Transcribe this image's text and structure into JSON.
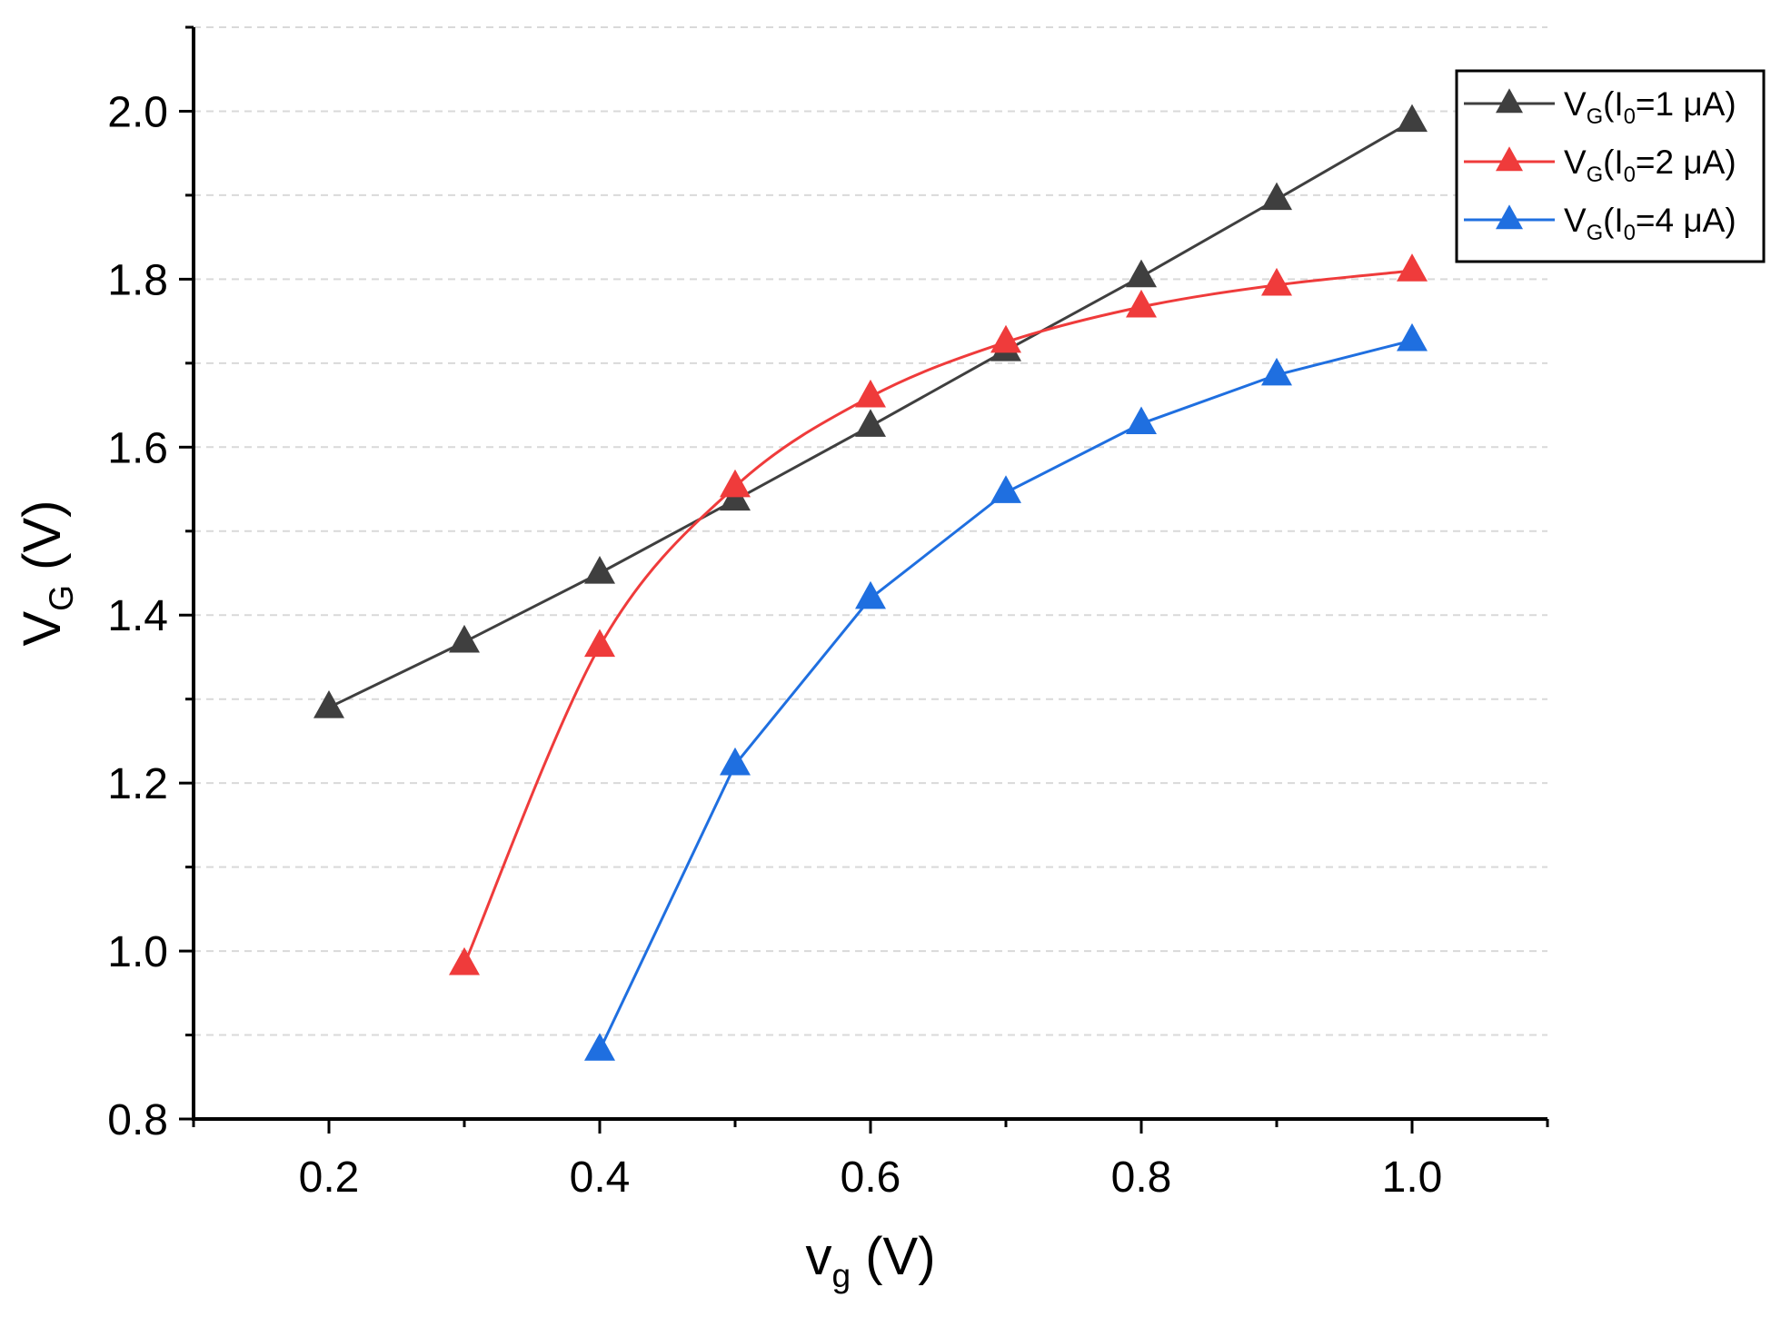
{
  "chart_data": {
    "type": "line",
    "title": "",
    "xlabel": {
      "base": "v",
      "sub": "g",
      "unit": " (V)"
    },
    "ylabel": {
      "base": "V",
      "sub": "G",
      "unit": " (V)"
    },
    "xlim": [
      0.1,
      1.1
    ],
    "ylim": [
      0.8,
      2.1
    ],
    "xticks": [
      0.2,
      0.4,
      0.6,
      0.8,
      1.0
    ],
    "xtick_labels": [
      "0.2",
      "0.4",
      "0.6",
      "0.8",
      "1.0"
    ],
    "yticks": [
      0.8,
      1.0,
      1.2,
      1.4,
      1.6,
      1.8,
      2.0
    ],
    "ytick_labels": [
      "0.8",
      "1.0",
      "1.2",
      "1.4",
      "1.6",
      "1.8",
      "2.0"
    ],
    "grid": "horizontal dashed",
    "legend_position": "top-right",
    "series": [
      {
        "name": "VG(I0=1 μA)",
        "legend": {
          "v": "V",
          "vsub": "G",
          "paren": "(I",
          "isub": "0",
          "rest": "=1 μA)"
        },
        "color": "#3f3f3f",
        "marker": "triangle",
        "smooth": false,
        "x": [
          0.2,
          0.3,
          0.4,
          0.5,
          0.6,
          0.7,
          0.8,
          0.9,
          1.0
        ],
        "y": [
          1.29,
          1.368,
          1.45,
          1.537,
          1.625,
          1.715,
          1.803,
          1.895,
          1.988
        ]
      },
      {
        "name": "VG(I0=2 μA)",
        "legend": {
          "v": "V",
          "vsub": "G",
          "paren": "(I",
          "isub": "0",
          "rest": "=2 μA)"
        },
        "color": "#ef3b3b",
        "marker": "triangle",
        "smooth": true,
        "x": [
          0.3,
          0.4,
          0.5,
          0.6,
          0.7,
          0.8,
          0.9,
          1.0
        ],
        "y": [
          0.984,
          1.363,
          1.553,
          1.66,
          1.725,
          1.767,
          1.793,
          1.81
        ]
      },
      {
        "name": "VG(I0=4 μA)",
        "legend": {
          "v": "V",
          "vsub": "G",
          "paren": "(I",
          "isub": "0",
          "rest": "=4 μA)"
        },
        "color": "#1f6fe0",
        "marker": "triangle",
        "smooth": false,
        "x": [
          0.4,
          0.5,
          0.6,
          0.7,
          0.8,
          0.9,
          1.0
        ],
        "y": [
          0.882,
          1.222,
          1.42,
          1.546,
          1.628,
          1.686,
          1.727
        ]
      }
    ]
  }
}
